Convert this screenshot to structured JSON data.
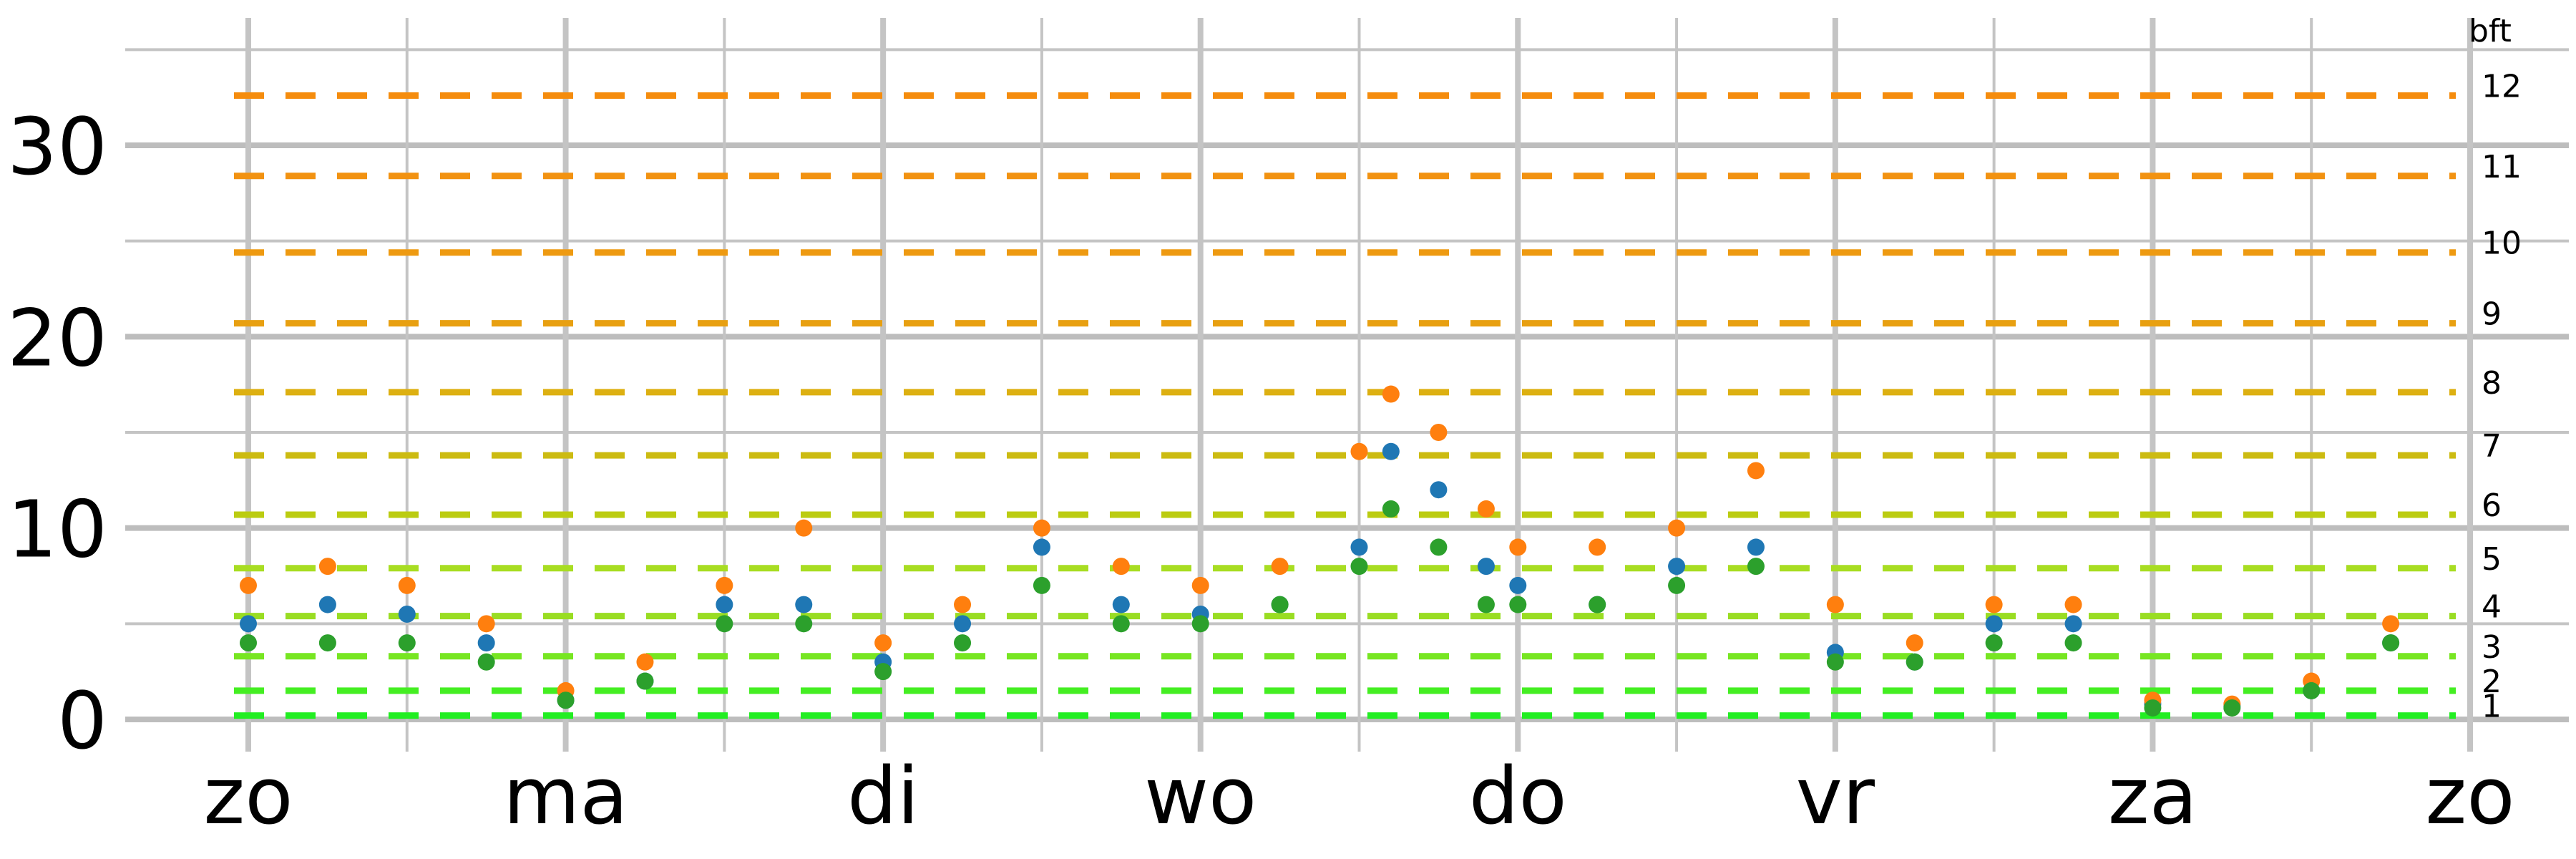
{
  "chart_data": {
    "type": "scatter",
    "title": "",
    "xlabel": "",
    "ylabel": "",
    "x_unit": "days",
    "x_ticks": [
      "zo",
      "ma",
      "di",
      "wo",
      "do",
      "vr",
      "za",
      "zo"
    ],
    "x_tick_positions": [
      0,
      1,
      2,
      3,
      4,
      5,
      6,
      7
    ],
    "xlim": [
      -0.4,
      7.2
    ],
    "y_ticks": [
      0,
      10,
      20,
      30
    ],
    "y_minor_ticks": [
      5,
      15,
      25,
      35
    ],
    "ylim": [
      -0.5,
      35.5
    ],
    "grid": true,
    "beaufort": {
      "title": "bft",
      "levels": [
        {
          "label": "1",
          "y": 0.2,
          "color": "#22ee22"
        },
        {
          "label": "2",
          "y": 1.5,
          "color": "#44ee22"
        },
        {
          "label": "3",
          "y": 3.3,
          "color": "#77e622"
        },
        {
          "label": "4",
          "y": 5.4,
          "color": "#99dd22"
        },
        {
          "label": "5",
          "y": 7.9,
          "color": "#a8dd22"
        },
        {
          "label": "6",
          "y": 10.7,
          "color": "#bbcc11"
        },
        {
          "label": "7",
          "y": 13.8,
          "color": "#ccbb11"
        },
        {
          "label": "8",
          "y": 17.1,
          "color": "#ddb011"
        },
        {
          "label": "9",
          "y": 20.7,
          "color": "#e8a011"
        },
        {
          "label": "10",
          "y": 24.4,
          "color": "#ee9a11"
        },
        {
          "label": "11",
          "y": 28.4,
          "color": "#f29211"
        },
        {
          "label": "12",
          "y": 32.6,
          "color": "#f58c0d"
        }
      ]
    },
    "series": [
      {
        "color": "#1f77b4",
        "x": [
          0,
          0.25,
          0.5,
          0.75,
          1,
          1.25,
          1.5,
          1.75,
          2,
          2.25,
          2.5,
          2.75,
          3,
          3.25,
          3.5,
          3.6,
          3.75,
          3.9,
          4,
          4.25,
          4.5,
          4.75,
          5,
          5.25,
          5.5,
          5.75,
          6,
          6.25,
          6.5,
          6.75
        ],
        "y": [
          5,
          6,
          5.5,
          4,
          1,
          2,
          6,
          6,
          3,
          5,
          9,
          6,
          5.5,
          6,
          9,
          14,
          12,
          8,
          7,
          6,
          8,
          9,
          3.5,
          3,
          5,
          5,
          0.8,
          0.7,
          1.5,
          4
        ]
      },
      {
        "color": "#ff7f0e",
        "x": [
          0,
          0.25,
          0.5,
          0.75,
          1,
          1.25,
          1.5,
          1.75,
          2,
          2.25,
          2.5,
          2.75,
          3,
          3.25,
          3.5,
          3.6,
          3.75,
          3.9,
          4,
          4.25,
          4.5,
          4.75,
          5,
          5.25,
          5.5,
          5.75,
          6,
          6.25,
          6.5,
          6.75
        ],
        "y": [
          7,
          8,
          7,
          5,
          1.5,
          3,
          7,
          10,
          4,
          6,
          10,
          8,
          7,
          8,
          14,
          17,
          15,
          11,
          9,
          9,
          10,
          13,
          6,
          4,
          6,
          6,
          1,
          0.8,
          2,
          5
        ]
      },
      {
        "color": "#2ca02c",
        "x": [
          0,
          0.25,
          0.5,
          0.75,
          1,
          1.25,
          1.5,
          1.75,
          2,
          2.25,
          2.5,
          2.75,
          3,
          3.25,
          3.5,
          3.6,
          3.75,
          3.9,
          4,
          4.25,
          4.5,
          4.75,
          5,
          5.25,
          5.5,
          5.75,
          6,
          6.25,
          6.5,
          6.75
        ],
        "y": [
          4,
          4,
          4,
          3,
          1,
          2,
          5,
          5,
          2.5,
          4,
          7,
          5,
          5,
          6,
          8,
          11,
          9,
          6,
          6,
          6,
          7,
          8,
          3,
          3,
          4,
          4,
          0.6,
          0.6,
          1.5,
          4
        ]
      }
    ]
  }
}
